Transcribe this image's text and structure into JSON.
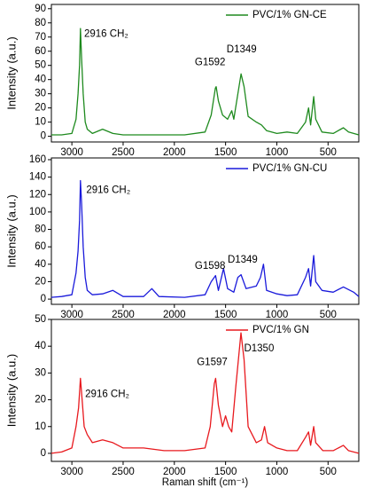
{
  "chart_data": [
    {
      "type": "line",
      "ylabel": "Intensity (a.u.)",
      "xlim": [
        3200,
        200
      ],
      "xticks": [
        3000,
        2500,
        2000,
        1500,
        1000,
        500
      ],
      "ylim": [
        -4,
        93
      ],
      "yticks": [
        0,
        10,
        20,
        30,
        40,
        50,
        60,
        70,
        80,
        90
      ],
      "legend": "upper right",
      "annotations": [
        "2916 CH₂",
        "G1592",
        "D1349"
      ],
      "x": [
        3200,
        3100,
        3000,
        2960,
        2940,
        2925,
        2916,
        2905,
        2890,
        2870,
        2850,
        2800,
        2700,
        2600,
        2500,
        2300,
        2100,
        1900,
        1700,
        1640,
        1600,
        1592,
        1570,
        1530,
        1480,
        1440,
        1420,
        1380,
        1349,
        1320,
        1280,
        1200,
        1150,
        1100,
        1000,
        900,
        800,
        720,
        690,
        670,
        640,
        620,
        560,
        450,
        350,
        300,
        200
      ],
      "series": [
        {
          "name": "PVC/1% GN-CE",
          "color": "#1e8a1e",
          "values": [
            1,
            1,
            2,
            12,
            30,
            50,
            76,
            55,
            30,
            10,
            5,
            2,
            5,
            2,
            1,
            1,
            1,
            1,
            3,
            15,
            34,
            35,
            25,
            15,
            12,
            18,
            12,
            30,
            44,
            35,
            14,
            10,
            8,
            4,
            2,
            3,
            2,
            10,
            20,
            8,
            28,
            12,
            3,
            2,
            6,
            3,
            1
          ]
        }
      ]
    },
    {
      "type": "line",
      "ylabel": "Intensity (a.u.)",
      "xlim": [
        3200,
        200
      ],
      "xticks": [
        3000,
        2500,
        2000,
        1500,
        1000,
        500
      ],
      "ylim": [
        -6,
        162
      ],
      "yticks": [
        0,
        20,
        40,
        60,
        80,
        100,
        120,
        140,
        160
      ],
      "legend": "upper right",
      "annotations": [
        "2916 CH₂",
        "G1598",
        "D1349"
      ],
      "x": [
        3200,
        3100,
        3000,
        2960,
        2940,
        2925,
        2916,
        2905,
        2890,
        2870,
        2850,
        2800,
        2700,
        2600,
        2500,
        2300,
        2220,
        2150,
        1900,
        1700,
        1640,
        1598,
        1570,
        1520,
        1480,
        1420,
        1380,
        1349,
        1300,
        1200,
        1160,
        1130,
        1100,
        1000,
        900,
        800,
        720,
        690,
        670,
        640,
        620,
        560,
        450,
        350,
        250,
        200
      ],
      "series": [
        {
          "name": "PVC/1% GN-CU",
          "color": "#1a1adb",
          "values": [
            2,
            3,
            5,
            30,
            55,
            90,
            136,
            110,
            60,
            25,
            10,
            5,
            6,
            10,
            3,
            3,
            12,
            3,
            2,
            5,
            20,
            27,
            10,
            35,
            12,
            8,
            25,
            28,
            12,
            15,
            25,
            40,
            10,
            6,
            4,
            5,
            25,
            35,
            15,
            50,
            20,
            10,
            8,
            14,
            8,
            3
          ]
        }
      ]
    },
    {
      "type": "line",
      "ylabel": "Intensity (a.u.)",
      "xlabel": "Raman shift (cm⁻¹)",
      "xlim": [
        3200,
        200
      ],
      "xticks": [
        3000,
        2500,
        2000,
        1500,
        1000,
        500
      ],
      "ylim": [
        -3,
        50
      ],
      "yticks": [
        0,
        10,
        20,
        30,
        40,
        50
      ],
      "legend": "upper right",
      "annotations": [
        "2916 CH₂",
        "G1597",
        "D1350"
      ],
      "x": [
        3200,
        3100,
        3000,
        2960,
        2935,
        2916,
        2900,
        2880,
        2850,
        2800,
        2700,
        2600,
        2500,
        2300,
        2100,
        1900,
        1700,
        1650,
        1610,
        1597,
        1570,
        1530,
        1500,
        1470,
        1440,
        1400,
        1350,
        1320,
        1280,
        1200,
        1150,
        1120,
        1090,
        1000,
        900,
        800,
        720,
        690,
        670,
        640,
        620,
        550,
        450,
        350,
        300,
        200
      ],
      "series": [
        {
          "name": "PVC/1% GN",
          "color": "#e8191e",
          "values": [
            0,
            0.5,
            2,
            10,
            17,
            28,
            20,
            10,
            7,
            4,
            5,
            4,
            2,
            2,
            1,
            1,
            2,
            10,
            26,
            28,
            18,
            10,
            14,
            10,
            8,
            25,
            45,
            35,
            10,
            4,
            5,
            10,
            4,
            2,
            1,
            1,
            6,
            8,
            3,
            10,
            4,
            1,
            1,
            3,
            1,
            0
          ]
        }
      ]
    }
  ]
}
